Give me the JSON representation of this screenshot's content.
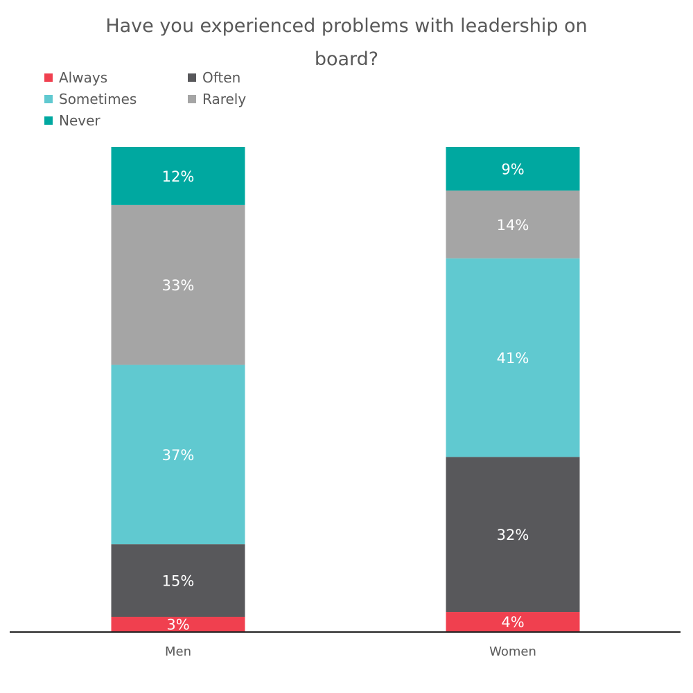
{
  "chart_data": {
    "type": "bar",
    "stacked": true,
    "title": "Have you experienced problems with leadership on board?",
    "title_lines": [
      "Have you experienced problems with leadership on",
      "board?"
    ],
    "categories": [
      "Men",
      "Women"
    ],
    "series": [
      {
        "name": "Always",
        "color": "#f0404f",
        "values": [
          3,
          4
        ],
        "labels": [
          "3%",
          "4%"
        ]
      },
      {
        "name": "Often",
        "color": "#58585b",
        "values": [
          15,
          32
        ],
        "labels": [
          "15%",
          "32%"
        ]
      },
      {
        "name": "Sometimes",
        "color": "#60c9d0",
        "values": [
          37,
          41
        ],
        "labels": [
          "37%",
          "41%"
        ]
      },
      {
        "name": "Rarely",
        "color": "#a5a5a5",
        "values": [
          33,
          14
        ],
        "labels": [
          "33%",
          "14%"
        ]
      },
      {
        "name": "Never",
        "color": "#00a8a0",
        "values": [
          12,
          9
        ],
        "labels": [
          "12%",
          "9%"
        ]
      }
    ],
    "ylim": [
      0,
      100
    ],
    "xlabel": "",
    "ylabel": "",
    "grid": false,
    "legend_position": "top-left",
    "data_label_color": "#ffffff",
    "text_color": "#595959",
    "axis_color": "#222222"
  }
}
